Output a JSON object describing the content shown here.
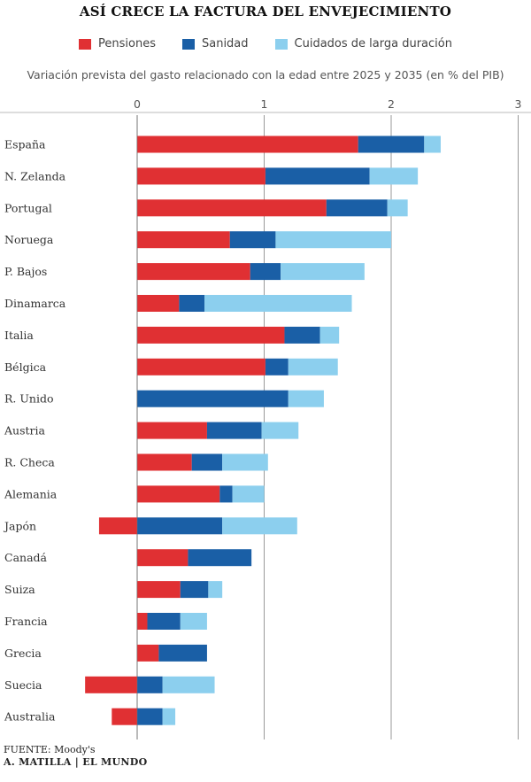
{
  "title": "ASÍ CRECE LA FACTURA DEL ENVEJECIMIENTO",
  "subtitle": "Variación prevista del gasto relacionado con la edad entre 2025 y 2035 (en % del PIB)",
  "legend": [
    {
      "label": "Pensiones",
      "color": "#e03033"
    },
    {
      "label": "Sanidad",
      "color": "#1a5fa6"
    },
    {
      "label": "Cuidados de larga duración",
      "color": "#8ccfee"
    }
  ],
  "footer": {
    "source": "FUENTE: Moody's",
    "credit": "A. MATILLA | EL MUNDO"
  },
  "chart_data": {
    "type": "bar",
    "orientation": "horizontal",
    "stacked": true,
    "title": "ASÍ CRECE LA FACTURA DEL ENVEJECIMIENTO",
    "xlabel": "Variación prevista del gasto relacionado con la edad entre 2025 y 2035 (en % del PIB)",
    "ylabel": "",
    "xlim": [
      -0.3,
      3
    ],
    "xticks": [
      0,
      1,
      2,
      3
    ],
    "legend_position": "top",
    "categories": [
      "España",
      "N. Zelanda",
      "Portugal",
      "Noruega",
      "P. Bajos",
      "Dinamarca",
      "Italia",
      "Bélgica",
      "R. Unido",
      "Austria",
      "R. Checa",
      "Alemania",
      "Japón",
      "Canadá",
      "Suiza",
      "Francia",
      "Grecia",
      "Suecia",
      "Australia"
    ],
    "series": [
      {
        "name": "Pensiones",
        "color": "#e03033",
        "values": [
          1.74,
          1.01,
          1.49,
          0.73,
          0.89,
          0.33,
          1.16,
          1.01,
          0,
          0.55,
          0.43,
          0.65,
          -0.3,
          0.4,
          0.34,
          0.08,
          0.17,
          -0.41,
          -0.2
        ]
      },
      {
        "name": "Sanidad",
        "color": "#1a5fa6",
        "values": [
          0.52,
          0.82,
          0.48,
          0.36,
          0.24,
          0.2,
          0.28,
          0.18,
          1.19,
          0.43,
          0.24,
          0.1,
          0.67,
          0.5,
          0.22,
          0.26,
          0.38,
          0.2,
          0.2
        ]
      },
      {
        "name": "Cuidados de larga duración",
        "color": "#8ccfee",
        "values": [
          0.13,
          0.38,
          0.16,
          0.91,
          0.66,
          1.16,
          0.15,
          0.39,
          0.28,
          0.29,
          0.36,
          0.25,
          0.59,
          0,
          0.11,
          0.21,
          0,
          0.41,
          0.1
        ]
      }
    ]
  }
}
